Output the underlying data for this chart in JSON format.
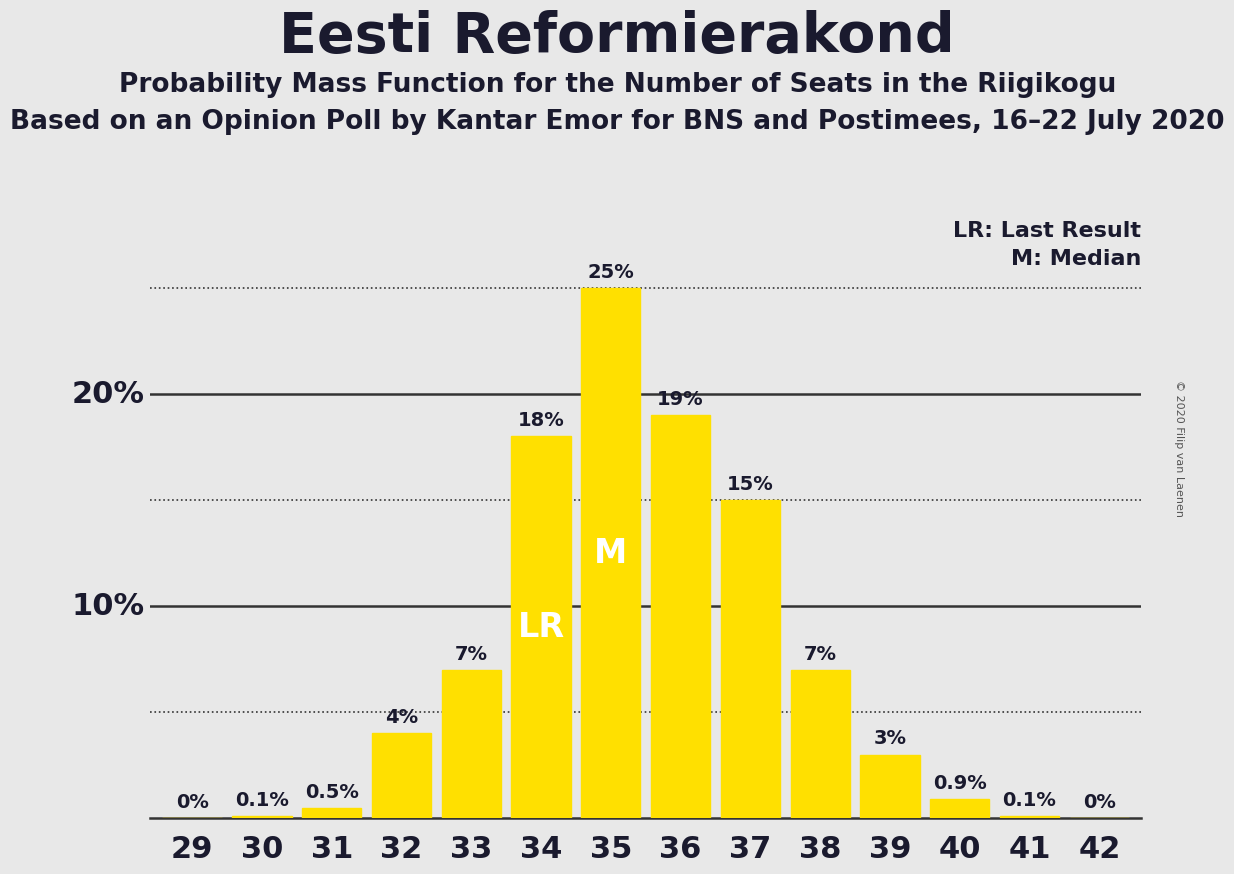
{
  "title": "Eesti Reformierakond",
  "subtitle1": "Probability Mass Function for the Number of Seats in the Riigikogu",
  "subtitle2": "Based on an Opinion Poll by Kantar Emor for BNS and Postimees, 16–22 July 2020",
  "copyright": "© 2020 Filip van Laenen",
  "categories": [
    29,
    30,
    31,
    32,
    33,
    34,
    35,
    36,
    37,
    38,
    39,
    40,
    41,
    42
  ],
  "values": [
    0.0,
    0.1,
    0.5,
    4.0,
    7.0,
    18.0,
    25.0,
    19.0,
    15.0,
    7.0,
    3.0,
    0.9,
    0.1,
    0.0
  ],
  "value_labels": [
    "0%",
    "0.1%",
    "0.5%",
    "4%",
    "7%",
    "18%",
    "25%",
    "19%",
    "15%",
    "7%",
    "3%",
    "0.9%",
    "0.1%",
    "0%"
  ],
  "bar_color": "#FFE000",
  "background_color": "#E8E8E8",
  "lr_seat": 34,
  "median_seat": 35,
  "lr_label": "LR",
  "median_label": "M",
  "lr_legend": "LR: Last Result",
  "median_legend": "M: Median",
  "ylim": [
    0,
    27
  ],
  "dotted_hlines": [
    5,
    15,
    25
  ],
  "solid_hlines": [
    10,
    20
  ],
  "text_color": "#1a1a2e",
  "label_fontsize": 14,
  "tick_fontsize": 22,
  "title_fontsize": 40,
  "subtitle1_fontsize": 19,
  "subtitle2_fontsize": 19,
  "legend_fontsize": 16,
  "inner_label_fontsize": 24,
  "copyright_fontsize": 8
}
